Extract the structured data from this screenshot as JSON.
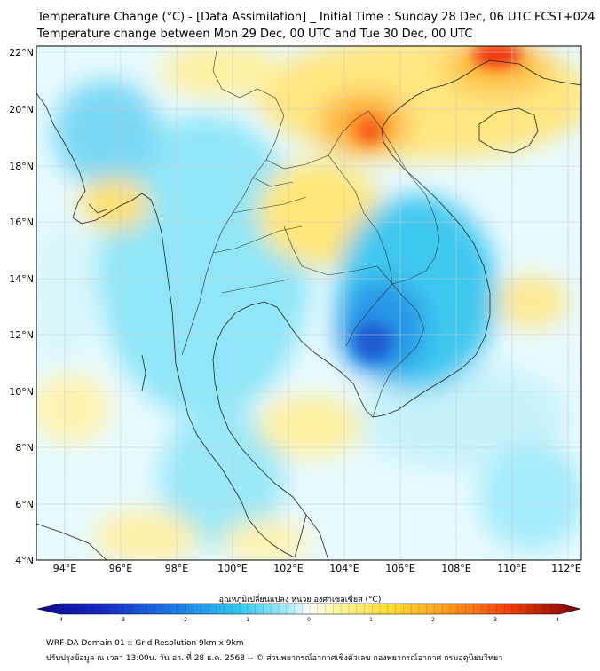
{
  "title": {
    "line1": "Temperature Change (°C) - [Data Assimilation] _ Initial Time : Sunday 28 Dec, 06 UTC FCST+024",
    "line2": "Temperature change between Mon 29 Dec, 00 UTC and Tue 30 Dec, 00 UTC"
  },
  "map": {
    "lat_ticks": [
      "22°N",
      "20°N",
      "18°N",
      "16°N",
      "14°N",
      "12°N",
      "10°N",
      "8°N",
      "6°N",
      "4°N"
    ],
    "lon_ticks": [
      "94°E",
      "96°E",
      "98°E",
      "100°E",
      "102°E",
      "104°E",
      "106°E",
      "108°E",
      "110°E",
      "112°E"
    ],
    "lat_range": [
      4,
      22.2
    ],
    "lon_range": [
      93,
      112.5
    ]
  },
  "colorbar": {
    "label": "อุณหภูมิเปลี่ยนแปลง หน่วย องศาเซลเซียส (°C)",
    "ticks": [
      "-4",
      "-3",
      "-2",
      "-1",
      "0",
      "1",
      "2",
      "3",
      "4"
    ],
    "range": [
      -4,
      4
    ],
    "colors": {
      "dark_blue": "#0a0a8c",
      "blue": "#1e64dc",
      "cyan": "#2ec8f0",
      "light_cyan": "#b4f0fa",
      "white": "#ffffff",
      "light_yellow": "#fff5a0",
      "yellow": "#ffd230",
      "orange": "#ff8c1e",
      "red": "#e60a0a",
      "dark_red": "#780000"
    }
  },
  "footer": {
    "line1": "WRF-DA Domain 01 :: Grid Resolution 9km x 9km",
    "line2": "ปรับปรุงข้อมูล ณ เวลา 13:00น. วัน อา. ที่ 28 ธ.ค. 2568 -- © ส่วนพยากรณ์อากาศเชิงตัวเลข กองพยากรณ์อากาศ กรมอุตุนิยมวิทยา"
  }
}
